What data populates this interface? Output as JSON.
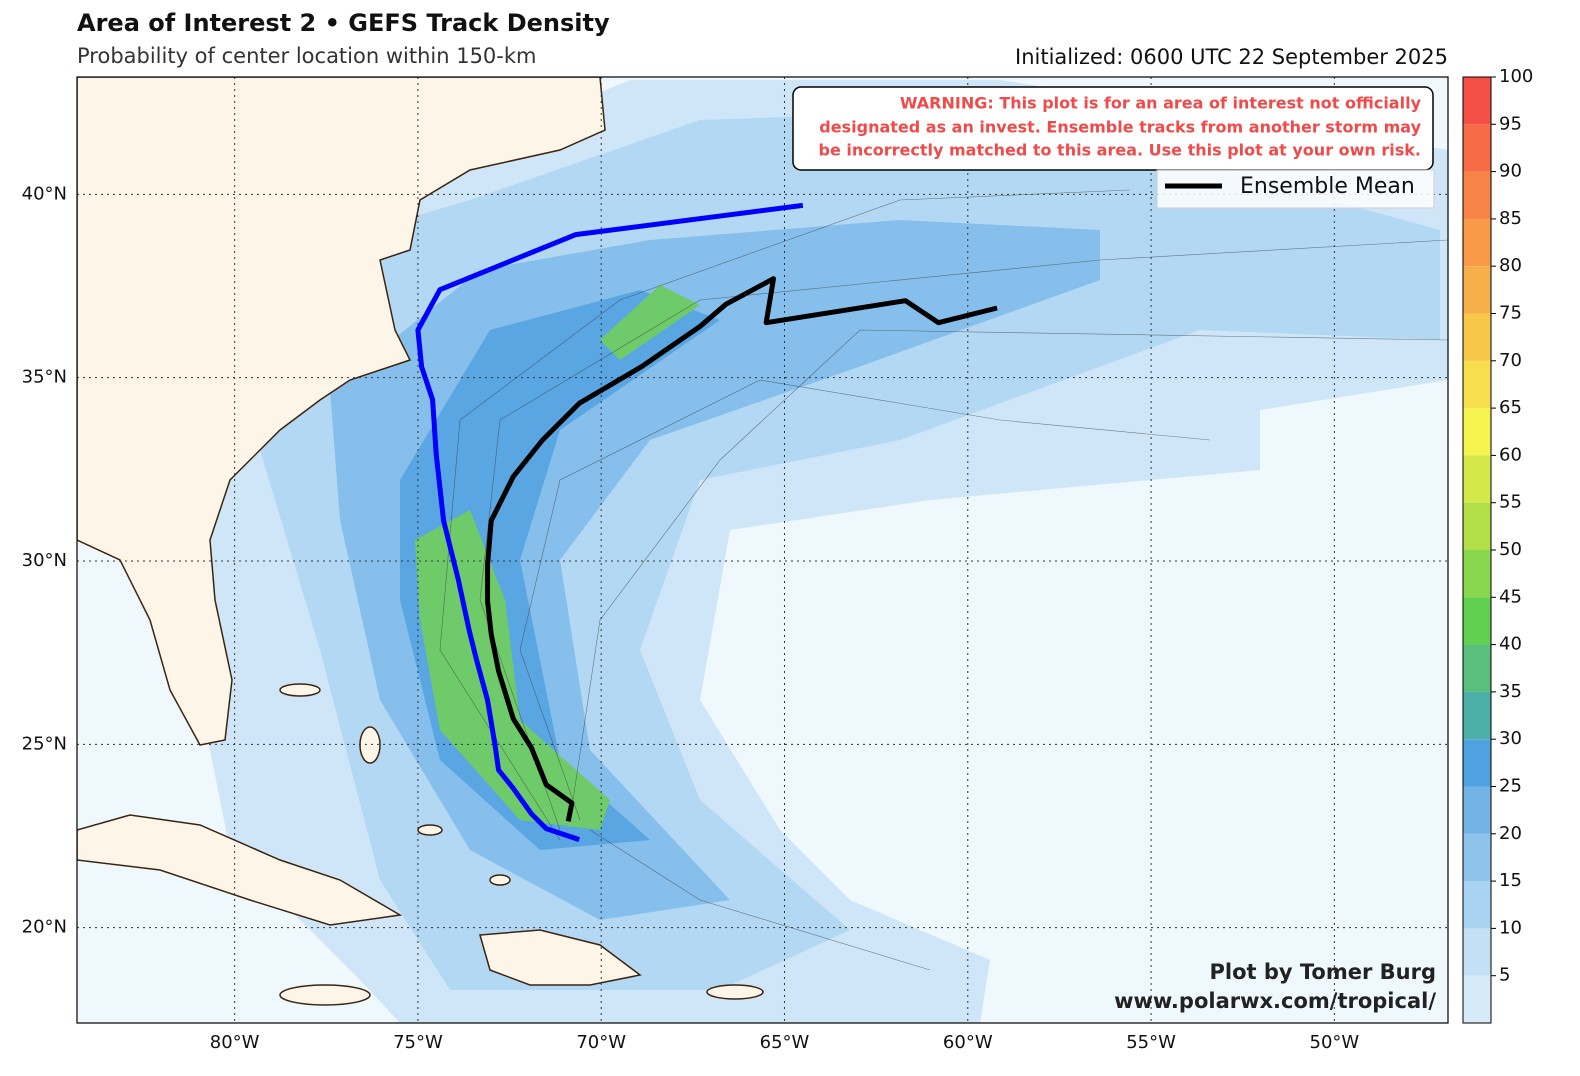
{
  "title": "Area of Interest 2 • GEFS Track Density",
  "subtitle": "Probability of center location within 150-km",
  "initialized": "Initialized: 0600 UTC 22 September 2025",
  "warning": [
    "WARNING: This plot is for an area of interest not officially",
    "designated as an invest. Ensemble tracks from another storm may",
    "be incorrectly matched to this area. Use this plot at your own risk."
  ],
  "credit": [
    "Plot by Tomer Burg",
    "www.polarwx.com/tropical/"
  ],
  "map": {
    "xlim": [
      -84.3,
      -46.9
    ],
    "ylim": [
      17.4,
      43.2
    ],
    "xticks": [
      {
        "value": -80,
        "label": "80°W"
      },
      {
        "value": -75,
        "label": "75°W"
      },
      {
        "value": -70,
        "label": "70°W"
      },
      {
        "value": -65,
        "label": "65°W"
      },
      {
        "value": -60,
        "label": "60°W"
      },
      {
        "value": -55,
        "label": "55°W"
      },
      {
        "value": -50,
        "label": "50°W"
      }
    ],
    "yticks": [
      {
        "value": 20,
        "label": "20°N"
      },
      {
        "value": 25,
        "label": "25°N"
      },
      {
        "value": 30,
        "label": "30°N"
      },
      {
        "value": 35,
        "label": "35°N"
      },
      {
        "value": 40,
        "label": "40°N"
      }
    ]
  },
  "tracks": [
    {
      "name": "Ensemble Mean",
      "color": "#000000",
      "lon": [
        -70.9,
        -70.8,
        -71.5,
        -71.9,
        -72.4,
        -72.8,
        -73.0,
        -73.1,
        -73.1,
        -73.0,
        -72.4,
        -71.6,
        -70.6,
        -68.9,
        -67.3,
        -66.6,
        -65.3,
        -65.5,
        -61.7,
        -60.8,
        -59.2
      ],
      "lat": [
        22.9,
        23.4,
        23.9,
        24.9,
        25.7,
        27.0,
        28.0,
        28.9,
        29.9,
        31.1,
        32.3,
        33.3,
        34.3,
        35.3,
        36.4,
        37.0,
        37.7,
        36.5,
        37.1,
        36.5,
        36.9
      ]
    },
    {
      "color": "#0000ff",
      "lon": [
        -70.6,
        -71.5,
        -71.9,
        -72.4,
        -72.8,
        -72.9,
        -73.1,
        -73.4,
        -73.6,
        -73.9,
        -74.3,
        -74.5,
        -74.6,
        -74.9,
        -75.0,
        -74.4,
        -70.7,
        -64.5
      ],
      "lat": [
        22.4,
        22.7,
        23.1,
        23.8,
        24.3,
        25.0,
        26.2,
        27.3,
        28.1,
        29.5,
        31.1,
        32.9,
        34.4,
        35.3,
        36.3,
        37.4,
        38.9,
        39.7
      ]
    }
  ],
  "colorbar": {
    "lim": [
      0,
      100
    ],
    "ticks": [
      5,
      10,
      15,
      20,
      25,
      30,
      35,
      40,
      45,
      50,
      55,
      60,
      65,
      70,
      75,
      80,
      85,
      90,
      95,
      100
    ],
    "bounds": [
      0,
      5,
      10,
      15,
      20,
      25,
      30,
      35,
      40,
      45,
      50,
      55,
      60,
      65,
      70,
      75,
      80,
      85,
      90,
      95,
      100
    ],
    "colors": [
      "#d6eaf8",
      "#c3e0f5",
      "#a9d3f1",
      "#8ec4ec",
      "#73b3e6",
      "#4fa2e0",
      "#4cb0a8",
      "#58c07a",
      "#5fd14e",
      "#89d74c",
      "#b2df48",
      "#d4e84a",
      "#f5f34e",
      "#f6de4c",
      "#f7c74a",
      "#f7b049",
      "#f89a48",
      "#f88346",
      "#f76c45",
      "#f55046"
    ]
  }
}
